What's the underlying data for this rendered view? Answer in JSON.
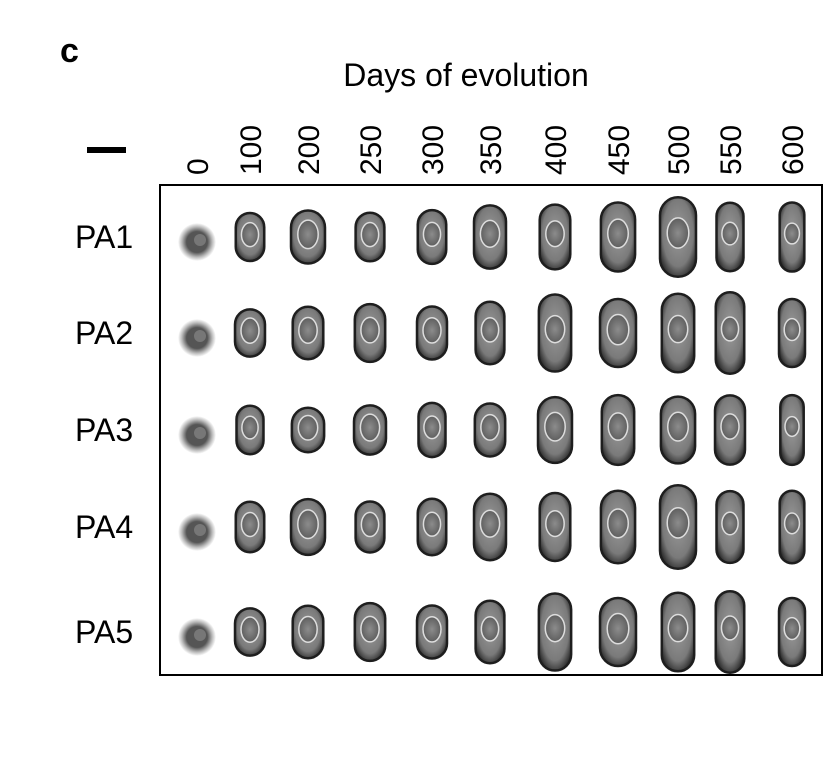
{
  "panel_label": "c",
  "column_header": "Days of evolution",
  "columns": [
    "0",
    "100",
    "200",
    "250",
    "300",
    "350",
    "400",
    "450",
    "500",
    "550",
    "600"
  ],
  "rows": [
    "PA1",
    "PA2",
    "PA3",
    "PA4",
    "PA5"
  ]
}
